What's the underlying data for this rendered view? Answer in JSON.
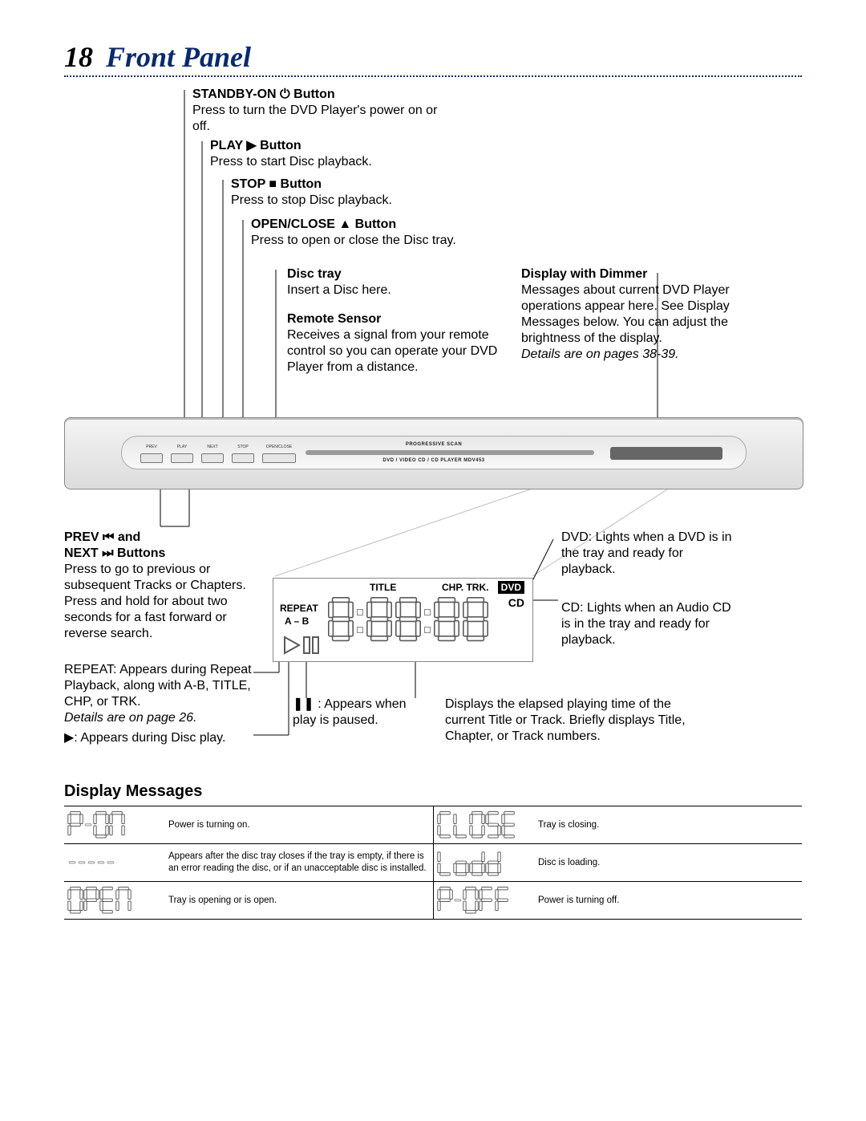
{
  "page_number": "18",
  "page_title": "Front Panel",
  "accent_color": "#0a2a6b",
  "device": {
    "labels": {
      "progressive": "PROGRESSIVE SCAN",
      "model": "DVD / VIDEO CD / CD PLAYER  MDV453"
    },
    "buttons": [
      "PREV",
      "PLAY",
      "NEXT",
      "STOP",
      "OPEN/CLOSE"
    ]
  },
  "callouts_top": [
    {
      "title": "STANDBY-ON ⏻ Button",
      "body": "Press to turn the DVD Player's power on or off."
    },
    {
      "title": "PLAY ▶ Button",
      "body": "Press to start Disc playback."
    },
    {
      "title": "STOP ■ Button",
      "body": "Press to stop Disc playback."
    },
    {
      "title": "OPEN/CLOSE ▲ Button",
      "body": "Press to open or close the Disc tray."
    },
    {
      "title": "Disc tray",
      "body": "Insert a Disc here."
    },
    {
      "title": "Remote Sensor",
      "body": "Receives a signal from your remote control so you can operate your DVD Player from a distance."
    }
  ],
  "callout_top_right": {
    "title": "Display with Dimmer",
    "body": "Messages about current DVD Player operations appear here. See Display Messages below. You can adjust the brightness of the display.",
    "note": "Details are on pages 38-39."
  },
  "callouts_bottom_left": {
    "prev_next": {
      "title_line1": "PREV ⏮ and",
      "title_line2": "NEXT ⏭ Buttons",
      "body": "Press to go to previous or subsequent Tracks or Chapters. Press and hold for about two seconds for a fast forward or reverse search."
    },
    "repeat": {
      "body": "REPEAT: Appears during Repeat Playback, along with A-B, TITLE, CHP, or TRK.",
      "note": "Details are on page 26."
    },
    "play_indicator": "▶: Appears during Disc play."
  },
  "callouts_bottom_mid": {
    "pause": "❚❚ : Appears when play is paused."
  },
  "callouts_bottom_right": {
    "dvd": "DVD: Lights when a DVD is in the tray and ready for playback.",
    "cd": "CD: Lights when an Audio CD is in the tray and ready for playback.",
    "elapsed": "Displays the elapsed playing time of the current Title or Track. Briefly displays Title, Chapter, or Track numbers."
  },
  "zoom_display": {
    "title": "TITLE",
    "chp_trk": "CHP. TRK.",
    "dvd": "DVD",
    "cd": "CD",
    "repeat": "REPEAT",
    "ab": "A – B"
  },
  "display_messages_heading": "Display Messages",
  "messages": {
    "left": [
      {
        "code": "P-ON",
        "desc": "Power is turning on."
      },
      {
        "code": "-----",
        "desc": "Appears after the disc tray closes if the tray is empty, if there is an error reading the disc, or if an unacceptable disc is installed."
      },
      {
        "code": "OPEN",
        "desc": "Tray is opening or is open."
      }
    ],
    "right": [
      {
        "code": "CLOSE",
        "desc": "Tray is closing."
      },
      {
        "code": "Lodd",
        "desc": "Disc is loading."
      },
      {
        "code": "P-OFF",
        "desc": "Power is turning off."
      }
    ]
  },
  "seg_color_stroke": "#5a5a5a",
  "seg_color_fill": "#ffffff"
}
